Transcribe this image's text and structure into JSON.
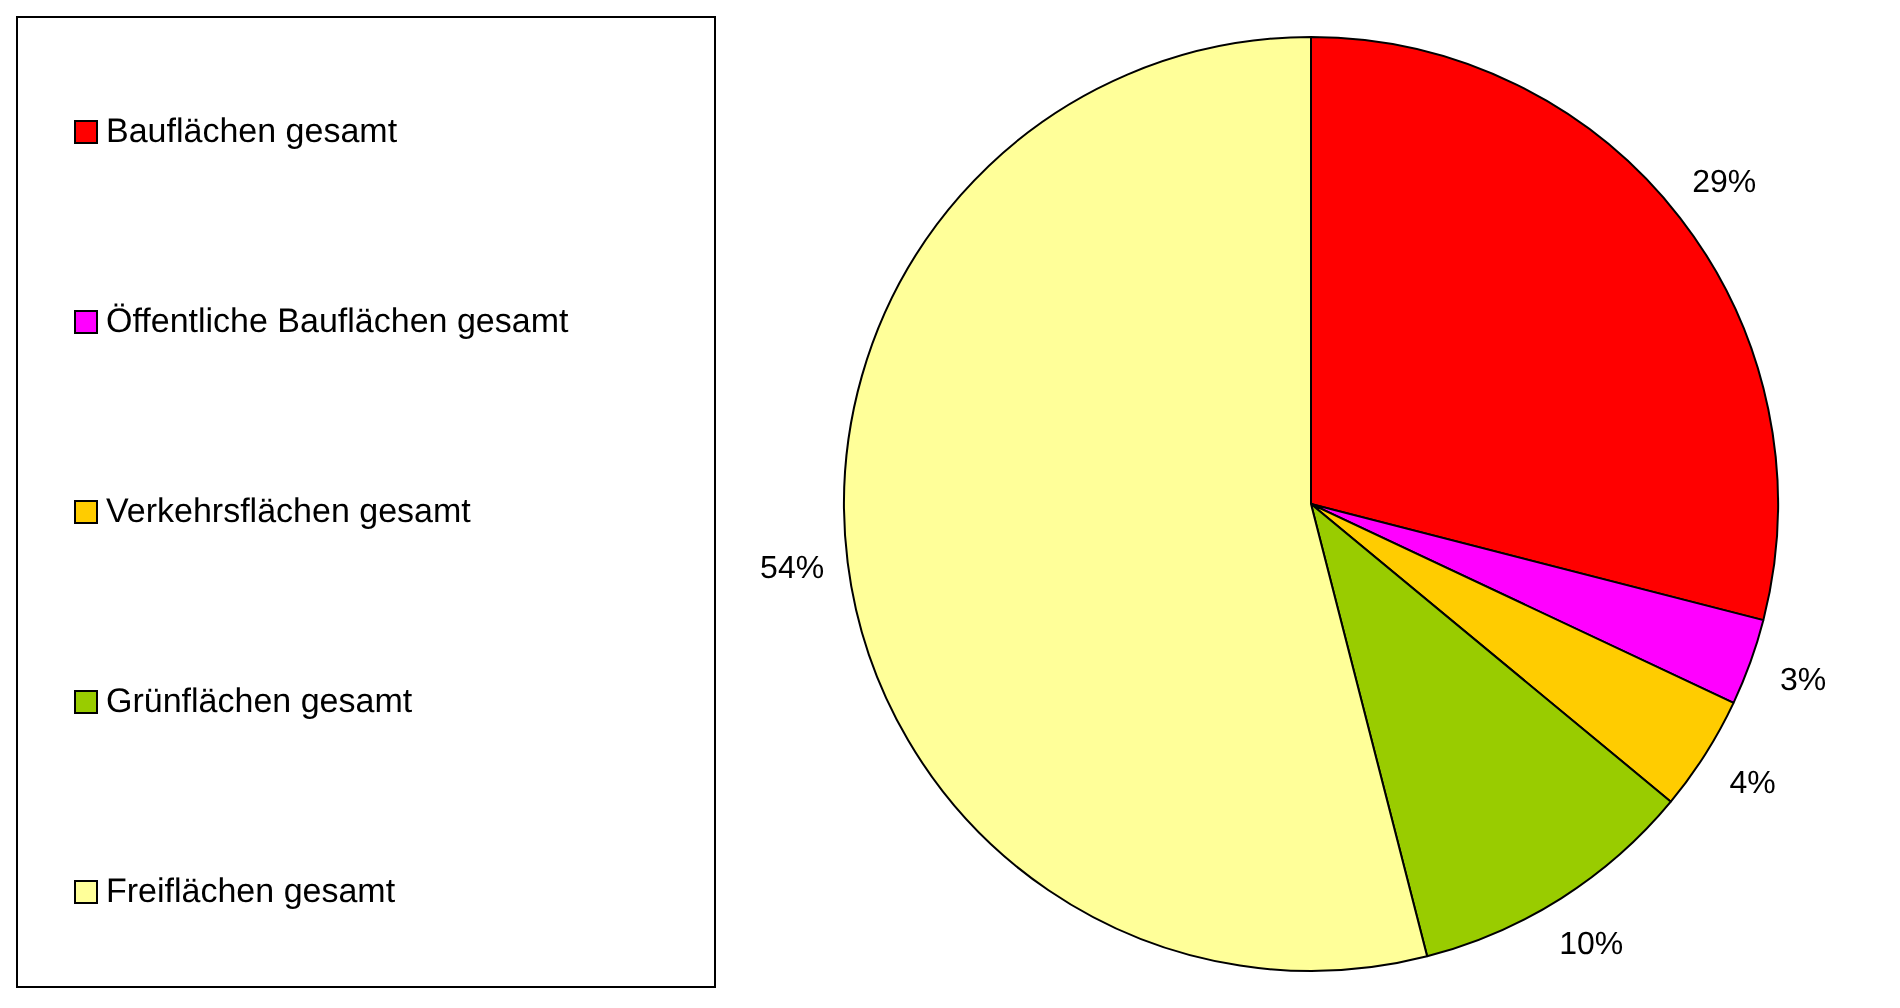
{
  "chart_data": {
    "type": "pie",
    "categories": [
      "Bauflächen gesamt",
      "Öffentliche Bauflächen gesamt",
      "Verkehrsflächen gesamt",
      "Grünflächen gesamt",
      "Freiflächen gesamt"
    ],
    "values": [
      29,
      3,
      4,
      10,
      54
    ],
    "colors": [
      "#ff0000",
      "#ff00ff",
      "#ffcc00",
      "#99cc00",
      "#ffff99"
    ],
    "value_labels": [
      "29%",
      "3%",
      "4%",
      "10%",
      "54%"
    ],
    "legend": "left"
  }
}
